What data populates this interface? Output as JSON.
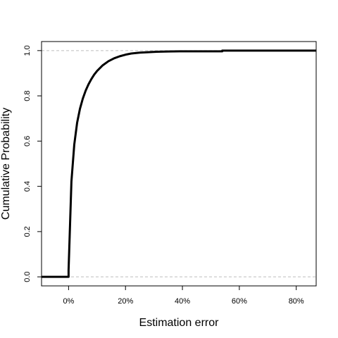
{
  "chart_data": {
    "type": "line",
    "title": "",
    "xlabel": "Estimation error",
    "ylabel": "Cumulative Probability",
    "xlim": [
      -0.095,
      0.87
    ],
    "ylim": [
      -0.04,
      1.04
    ],
    "x_ticks": [
      0,
      0.2,
      0.4,
      0.6,
      0.8
    ],
    "x_tick_labels": [
      "0%",
      "20%",
      "40%",
      "60%",
      "80%"
    ],
    "y_ticks": [
      0,
      0.2,
      0.4,
      0.6,
      0.8,
      1
    ],
    "y_tick_labels": [
      "0.0",
      "0.2",
      "0.4",
      "0.6",
      "0.8",
      "1.0"
    ],
    "reference_lines": [
      0,
      1
    ],
    "grid": false,
    "legend": "none",
    "line_color": "#000000",
    "reference_line_color": "#bebebe",
    "series": [
      {
        "x": [
          -0.095,
          0.0,
          0.0,
          0.01,
          0.02,
          0.03,
          0.04,
          0.05,
          0.06,
          0.07,
          0.08,
          0.09,
          0.1,
          0.12,
          0.14,
          0.16,
          0.18,
          0.2,
          0.22,
          0.25,
          0.28,
          0.31,
          0.35,
          0.4,
          0.45,
          0.5,
          0.54,
          0.54,
          0.87
        ],
        "y": [
          0.0,
          0.0,
          0.03,
          0.422,
          0.585,
          0.681,
          0.743,
          0.788,
          0.823,
          0.851,
          0.874,
          0.894,
          0.91,
          0.935,
          0.953,
          0.966,
          0.975,
          0.982,
          0.987,
          0.991,
          0.993,
          0.995,
          0.996,
          0.997,
          0.997,
          0.997,
          0.997,
          1.0,
          1.0
        ]
      }
    ]
  }
}
